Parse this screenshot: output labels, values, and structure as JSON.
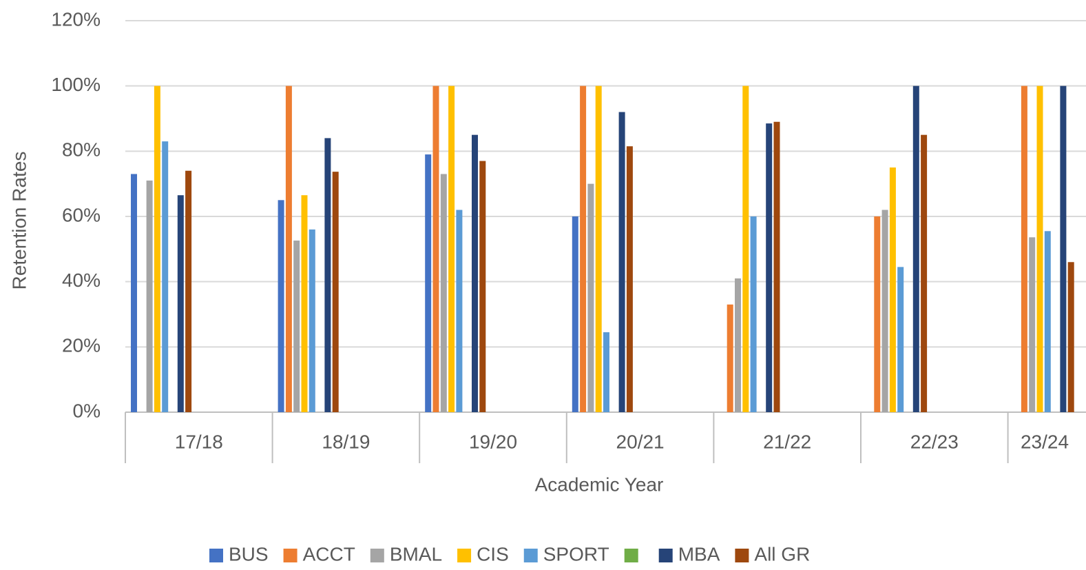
{
  "chart_data": {
    "type": "bar",
    "categories": [
      "17/18",
      "18/19",
      "19/20",
      "20/21",
      "21/22",
      "22/23",
      "23/24"
    ],
    "series": [
      {
        "name": "BUS",
        "color": "#4472c4",
        "values": [
          73,
          65,
          79,
          60,
          null,
          null,
          null
        ]
      },
      {
        "name": "ACCT",
        "color": "#ed7d31",
        "values": [
          null,
          100,
          100,
          100,
          33,
          60,
          100
        ]
      },
      {
        "name": "BMAL",
        "color": "#a5a5a5",
        "values": [
          71,
          52.6,
          73,
          70,
          41,
          62,
          53.6
        ]
      },
      {
        "name": "CIS",
        "color": "#ffc000",
        "values": [
          100,
          66.5,
          100,
          100,
          100,
          75,
          100
        ]
      },
      {
        "name": "SPORT",
        "color": "#5b9bd5",
        "values": [
          83,
          56,
          62,
          24.5,
          60,
          44.5,
          55.5
        ]
      },
      {
        "name": null,
        "color": "#70ad47",
        "values": [
          null,
          null,
          null,
          null,
          null,
          null,
          null
        ]
      },
      {
        "name": "MBA",
        "color": "#264478",
        "values": [
          66.5,
          84,
          85,
          92,
          88.5,
          100,
          100
        ]
      },
      {
        "name": "All GR",
        "color": "#9e480e",
        "values": [
          74,
          73.7,
          77,
          81.5,
          89,
          85,
          46
        ]
      }
    ],
    "ylim": [
      0,
      120
    ],
    "yticks": [
      {
        "value": 0,
        "label": "0%"
      },
      {
        "value": 20,
        "label": "20%"
      },
      {
        "value": 40,
        "label": "40%"
      },
      {
        "value": 60,
        "label": "60%"
      },
      {
        "value": 80,
        "label": "80%"
      },
      {
        "value": 100,
        "label": "100%"
      },
      {
        "value": 120,
        "label": "120%"
      }
    ],
    "ylabel": "Retention Rates",
    "xlabel": "Academic Year",
    "grid": true,
    "legend": "bottom"
  }
}
